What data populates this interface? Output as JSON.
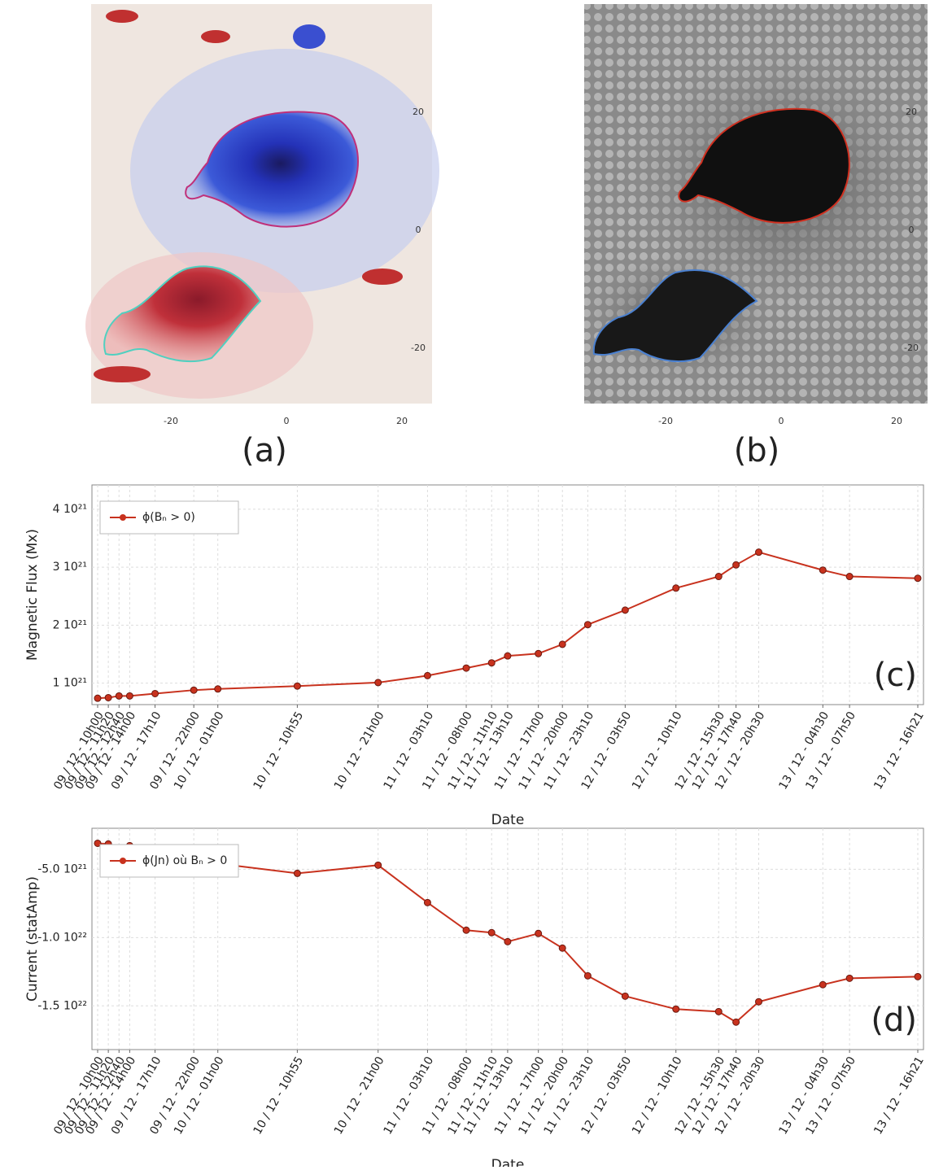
{
  "panels": [
    {
      "label": "(a)",
      "xticks": [
        -20,
        0,
        20
      ],
      "yticks": [
        20,
        0,
        -20
      ]
    },
    {
      "label": "(b)",
      "xticks": [
        -20,
        0,
        20
      ],
      "yticks": [
        20,
        0,
        -20
      ]
    }
  ],
  "chart_data": [
    {
      "type": "line",
      "panel_label": "(c)",
      "y_label": "Magnetic Flux (Mx)",
      "x_label": "Date",
      "grid": true,
      "legend": "upper left",
      "x": [
        "09 / 12 - 10h00",
        "09 / 12 - 11h20",
        "09 / 12 - 12h40",
        "09 / 12 - 14h00",
        "09 / 12 - 17h10",
        "09 / 12 - 22h00",
        "10 / 12 - 01h00",
        "10 / 12 - 10h55",
        "10 / 12 - 21h00",
        "11 / 12 - 03h10",
        "11 / 12 - 08h00",
        "11 / 12 - 11h10",
        "11 / 12 - 13h10",
        "11 / 12 - 17h00",
        "11 / 12 - 20h00",
        "11 / 12 - 23h10",
        "12 / 12 - 03h50",
        "12 / 12 - 10h10",
        "12 / 12 - 15h30",
        "12 / 12 - 17h40",
        "12 / 12 - 20h30",
        "13 / 12 - 04h30",
        "13 / 12 - 07h50",
        "13 / 12 - 16h21"
      ],
      "series": [
        {
          "name": "ϕ(Bₙ > 0)",
          "color": "#c8321e",
          "values": [
            7.4e+20,
            7.5e+20,
            7.8e+20,
            7.8e+20,
            8.2e+20,
            8.8e+20,
            9e+20,
            9.5e+20,
            1.01e+21,
            1.13e+21,
            1.26e+21,
            1.35e+21,
            1.47e+21,
            1.51e+21,
            1.67e+21,
            2.01e+21,
            2.26e+21,
            2.64e+21,
            2.84e+21,
            3.04e+21,
            3.26e+21,
            2.95e+21,
            2.84e+21,
            2.81e+21
          ]
        }
      ],
      "ylim": [
        6.3e+20,
        4.42e+21
      ],
      "yticks": [
        {
          "value": 1e+21,
          "label": "1 10²¹"
        },
        {
          "value": 2e+21,
          "label": "2 10²¹"
        },
        {
          "value": 3e+21,
          "label": "3 10²¹"
        },
        {
          "value": 4e+21,
          "label": "4 10²¹"
        }
      ]
    },
    {
      "type": "line",
      "panel_label": "(d)",
      "y_label": "Current (statAmp)",
      "x_label": "Date",
      "grid": true,
      "legend": "upper left",
      "x": [
        "09 / 12 - 10h00",
        "09 / 12 - 11h20",
        "09 / 12 - 12h40",
        "09 / 12 - 14h00",
        "09 / 12 - 17h10",
        "09 / 12 - 22h00",
        "10 / 12 - 01h00",
        "10 / 12 - 10h55",
        "10 / 12 - 21h00",
        "11 / 12 - 03h10",
        "11 / 12 - 08h00",
        "11 / 12 - 11h10",
        "11 / 12 - 13h10",
        "11 / 12 - 17h00",
        "11 / 12 - 20h00",
        "11 / 12 - 23h10",
        "12 / 12 - 03h50",
        "12 / 12 - 10h10",
        "12 / 12 - 15h30",
        "12 / 12 - 17h40",
        "12 / 12 - 20h30",
        "13 / 12 - 04h30",
        "13 / 12 - 07h50",
        "13 / 12 - 16h21"
      ],
      "series": [
        {
          "name": "ϕ(Jn) où Bₙ > 0",
          "color": "#c8321e",
          "values": [
            -3.1e+21,
            -3.15e+21,
            -3.51e+21,
            -3.27e+21,
            -3.87e+21,
            -4.4e+21,
            -4.58e+21,
            -5.3e+21,
            -4.7e+21,
            -7.44e+21,
            -9.46e+21,
            -9.64e+21,
            -1.03e+22,
            -9.7e+21,
            -1.077e+22,
            -1.28e+22,
            -1.429e+22,
            -1.524e+22,
            -1.542e+22,
            -1.619e+22,
            -1.47e+22,
            -1.345e+22,
            -1.298e+22,
            -1.286e+22
          ]
        }
      ],
      "ylim": [
        -1.82e+22,
        -2e+21
      ],
      "yticks": [
        {
          "value": -1.5e+22,
          "label": "-1.5 10²²"
        },
        {
          "value": -1e+22,
          "label": "-1.0 10²²"
        },
        {
          "value": -5e+21,
          "label": "-5.0 10²¹"
        }
      ]
    }
  ]
}
